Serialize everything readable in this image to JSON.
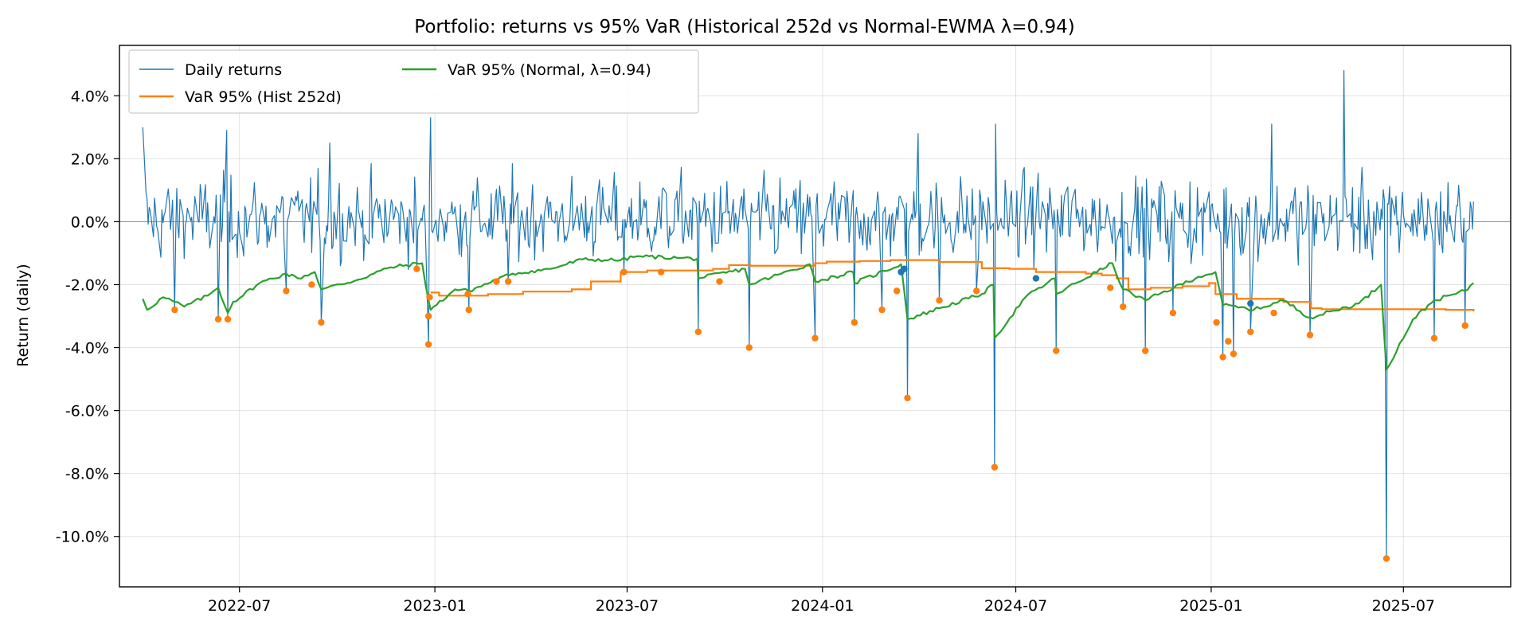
{
  "chart_data": {
    "type": "line",
    "title": "Portfolio: returns vs 95% VaR (Historical 252d vs Normal-EWMA λ=0.94)",
    "xlabel": "",
    "ylabel": "Return (daily)",
    "x_range": [
      "2022-03-10",
      "2025-10-10"
    ],
    "y_range": [
      -0.116,
      0.056
    ],
    "y_ticks": [
      0.04,
      0.02,
      0.0,
      -0.02,
      -0.04,
      -0.06,
      -0.08,
      -0.1
    ],
    "y_tick_labels": [
      "4.0%",
      "2.0%",
      "0.0%",
      "-2.0%",
      "-4.0%",
      "-6.0%",
      "-8.0%",
      "-10.0%"
    ],
    "x_ticks": [
      "2022-07-01",
      "2023-01-01",
      "2023-07-01",
      "2024-01-01",
      "2024-07-01",
      "2025-01-01",
      "2025-07-01"
    ],
    "x_tick_labels": [
      "2022-07",
      "2023-01",
      "2023-07",
      "2024-01",
      "2024-07",
      "2025-01",
      "2025-07"
    ],
    "grid": true,
    "zero_line": true,
    "legend_position": "top-left",
    "legend": [
      {
        "label": "Daily returns",
        "color": "#1f77b4"
      },
      {
        "label": "VaR 95% (Hist 252d)",
        "color": "#ff7f0e"
      },
      {
        "label": "VaR 95% (Normal, λ=0.94)",
        "color": "#2ca02c"
      }
    ],
    "series": [
      {
        "name": "Daily returns",
        "color": "#1f77b4",
        "date_range": [
          "2022-04-01",
          "2025-09-05"
        ],
        "generator_seed": 12345,
        "volatility": 0.0115,
        "notable_points": [
          {
            "date": "2022-04-01",
            "y": 0.03
          },
          {
            "date": "2022-05-01",
            "y": -0.028
          },
          {
            "date": "2022-06-11",
            "y": -0.031
          },
          {
            "date": "2022-06-19",
            "y": 0.029
          },
          {
            "date": "2022-06-20",
            "y": -0.031
          },
          {
            "date": "2022-08-14",
            "y": -0.022
          },
          {
            "date": "2022-09-16",
            "y": -0.032
          },
          {
            "date": "2022-09-24",
            "y": 0.025
          },
          {
            "date": "2022-12-15",
            "y": -0.015
          },
          {
            "date": "2022-12-26",
            "y": -0.039
          },
          {
            "date": "2022-12-28",
            "y": 0.033
          },
          {
            "date": "2023-02-02",
            "y": -0.028
          },
          {
            "date": "2023-03-11",
            "y": -0.019
          },
          {
            "date": "2023-06-28",
            "y": -0.016
          },
          {
            "date": "2023-09-06",
            "y": -0.035
          },
          {
            "date": "2023-10-24",
            "y": -0.04
          },
          {
            "date": "2023-12-25",
            "y": -0.037
          },
          {
            "date": "2024-01-31",
            "y": -0.032
          },
          {
            "date": "2024-02-26",
            "y": -0.028
          },
          {
            "date": "2024-03-21",
            "y": -0.056
          },
          {
            "date": "2024-03-31",
            "y": 0.028
          },
          {
            "date": "2024-04-20",
            "y": -0.025
          },
          {
            "date": "2024-05-25",
            "y": -0.022
          },
          {
            "date": "2024-06-11",
            "y": -0.078
          },
          {
            "date": "2024-06-12",
            "y": 0.031
          },
          {
            "date": "2024-08-08",
            "y": -0.041
          },
          {
            "date": "2024-10-10",
            "y": -0.027
          },
          {
            "date": "2024-10-31",
            "y": -0.041
          },
          {
            "date": "2024-11-26",
            "y": -0.029
          },
          {
            "date": "2025-01-12",
            "y": -0.043
          },
          {
            "date": "2025-01-22",
            "y": -0.042
          },
          {
            "date": "2025-02-07",
            "y": -0.035
          },
          {
            "date": "2025-02-27",
            "y": 0.031
          },
          {
            "date": "2025-04-04",
            "y": -0.036
          },
          {
            "date": "2025-05-06",
            "y": 0.048
          },
          {
            "date": "2025-06-15",
            "y": -0.107
          },
          {
            "date": "2025-07-30",
            "y": -0.037
          },
          {
            "date": "2025-08-28",
            "y": -0.033
          }
        ]
      },
      {
        "name": "VaR 95% (Hist 252d)",
        "color": "#ff7f0e",
        "step": true,
        "points": [
          [
            "2022-12-28",
            -0.0225
          ],
          [
            "2023-01-05",
            -0.0235
          ],
          [
            "2023-02-20",
            -0.023
          ],
          [
            "2023-03-25",
            -0.0222
          ],
          [
            "2023-05-10",
            -0.0215
          ],
          [
            "2023-05-28",
            -0.019
          ],
          [
            "2023-06-25",
            -0.016
          ],
          [
            "2023-07-20",
            -0.0155
          ],
          [
            "2023-09-20",
            -0.015
          ],
          [
            "2023-10-05",
            -0.0138
          ],
          [
            "2023-10-25",
            -0.014
          ],
          [
            "2023-12-25",
            -0.0132
          ],
          [
            "2024-01-05",
            -0.0127
          ],
          [
            "2024-02-05",
            -0.0125
          ],
          [
            "2024-03-05",
            -0.0122
          ],
          [
            "2024-04-20",
            -0.0128
          ],
          [
            "2024-05-30",
            -0.0148
          ],
          [
            "2024-06-25",
            -0.015
          ],
          [
            "2024-07-20",
            -0.016
          ],
          [
            "2024-09-05",
            -0.0165
          ],
          [
            "2024-09-20",
            -0.017
          ],
          [
            "2024-10-04",
            -0.018
          ],
          [
            "2024-10-15",
            -0.0215
          ],
          [
            "2024-11-05",
            -0.021
          ],
          [
            "2024-12-05",
            -0.0205
          ],
          [
            "2024-12-30",
            -0.0195
          ],
          [
            "2025-01-05",
            -0.023
          ],
          [
            "2025-01-25",
            -0.0245
          ],
          [
            "2025-03-10",
            -0.0255
          ],
          [
            "2025-04-05",
            -0.0275
          ],
          [
            "2025-04-15",
            -0.0278
          ],
          [
            "2025-08-10",
            -0.028
          ],
          [
            "2025-09-05",
            -0.0285
          ]
        ]
      },
      {
        "name": "VaR 95% (Normal, λ=0.94)",
        "color": "#2ca02c",
        "points": [
          [
            "2022-04-01",
            -0.0245
          ],
          [
            "2022-04-05",
            -0.028
          ],
          [
            "2022-04-20",
            -0.024
          ],
          [
            "2022-05-01",
            -0.0255
          ],
          [
            "2022-05-10",
            -0.027
          ],
          [
            "2022-06-01",
            -0.0235
          ],
          [
            "2022-06-11",
            -0.021
          ],
          [
            "2022-06-20",
            -0.029
          ],
          [
            "2022-06-25",
            -0.0255
          ],
          [
            "2022-07-20",
            -0.0195
          ],
          [
            "2022-08-14",
            -0.0165
          ],
          [
            "2022-08-25",
            -0.018
          ],
          [
            "2022-09-10",
            -0.016
          ],
          [
            "2022-09-16",
            -0.0215
          ],
          [
            "2022-10-20",
            -0.0185
          ],
          [
            "2022-11-20",
            -0.0145
          ],
          [
            "2022-12-20",
            -0.0132
          ],
          [
            "2022-12-26",
            -0.025
          ],
          [
            "2022-12-28",
            -0.028
          ],
          [
            "2023-01-20",
            -0.0215
          ],
          [
            "2023-02-02",
            -0.022
          ],
          [
            "2023-03-15",
            -0.0165
          ],
          [
            "2023-04-20",
            -0.015
          ],
          [
            "2023-05-20",
            -0.012
          ],
          [
            "2023-06-25",
            -0.0122
          ],
          [
            "2023-07-10",
            -0.011
          ],
          [
            "2023-08-20",
            -0.0115
          ],
          [
            "2023-09-05",
            -0.0118
          ],
          [
            "2023-09-06",
            -0.018
          ],
          [
            "2023-10-20",
            -0.015
          ],
          [
            "2023-10-24",
            -0.02
          ],
          [
            "2023-12-20",
            -0.0135
          ],
          [
            "2023-12-25",
            -0.019
          ],
          [
            "2024-01-30",
            -0.016
          ],
          [
            "2024-01-31",
            -0.0195
          ],
          [
            "2024-03-15",
            -0.0135
          ],
          [
            "2024-03-21",
            -0.031
          ],
          [
            "2024-04-20",
            -0.0275
          ],
          [
            "2024-05-30",
            -0.023
          ],
          [
            "2024-06-10",
            -0.02
          ],
          [
            "2024-06-11",
            -0.037
          ],
          [
            "2024-07-10",
            -0.024
          ],
          [
            "2024-08-07",
            -0.018
          ],
          [
            "2024-08-08",
            -0.023
          ],
          [
            "2024-09-30",
            -0.0132
          ],
          [
            "2024-10-10",
            -0.0215
          ],
          [
            "2024-10-31",
            -0.025
          ],
          [
            "2024-12-20",
            -0.0175
          ],
          [
            "2025-01-05",
            -0.016
          ],
          [
            "2025-01-12",
            -0.0265
          ],
          [
            "2025-02-10",
            -0.028
          ],
          [
            "2025-03-10",
            -0.025
          ],
          [
            "2025-04-04",
            -0.0305
          ],
          [
            "2025-05-20",
            -0.026
          ],
          [
            "2025-06-10",
            -0.02
          ],
          [
            "2025-06-15",
            -0.047
          ],
          [
            "2025-07-10",
            -0.031
          ],
          [
            "2025-07-30",
            -0.025
          ],
          [
            "2025-08-28",
            -0.022
          ],
          [
            "2025-09-05",
            -0.0195
          ]
        ]
      }
    ],
    "exceedances": {
      "hist_color": "#ff7f0e",
      "normal_color": "#1f77b4",
      "hist": [
        [
          "2022-05-01",
          -0.028
        ],
        [
          "2022-06-11",
          -0.031
        ],
        [
          "2022-06-20",
          -0.031
        ],
        [
          "2022-08-14",
          -0.022
        ],
        [
          "2022-09-07",
          -0.02
        ],
        [
          "2022-09-16",
          -0.032
        ],
        [
          "2022-12-15",
          -0.015
        ],
        [
          "2022-12-26",
          -0.039
        ],
        [
          "2022-12-26",
          -0.03
        ],
        [
          "2022-12-27",
          -0.024
        ],
        [
          "2023-02-01",
          -0.023
        ],
        [
          "2023-02-02",
          -0.028
        ],
        [
          "2023-02-28",
          -0.019
        ],
        [
          "2023-03-11",
          -0.019
        ],
        [
          "2023-06-28",
          -0.016
        ],
        [
          "2023-08-02",
          -0.016
        ],
        [
          "2023-09-06",
          -0.035
        ],
        [
          "2023-09-26",
          -0.019
        ],
        [
          "2023-10-24",
          -0.04
        ],
        [
          "2023-12-25",
          -0.037
        ],
        [
          "2024-01-31",
          -0.032
        ],
        [
          "2024-02-26",
          -0.028
        ],
        [
          "2024-03-11",
          -0.022
        ],
        [
          "2024-03-21",
          -0.056
        ],
        [
          "2024-04-20",
          -0.025
        ],
        [
          "2024-05-25",
          -0.022
        ],
        [
          "2024-06-11",
          -0.078
        ],
        [
          "2024-08-08",
          -0.041
        ],
        [
          "2024-09-28",
          -0.021
        ],
        [
          "2024-10-10",
          -0.027
        ],
        [
          "2024-10-31",
          -0.041
        ],
        [
          "2024-11-26",
          -0.029
        ],
        [
          "2025-01-06",
          -0.032
        ],
        [
          "2025-01-12",
          -0.043
        ],
        [
          "2025-01-17",
          -0.038
        ],
        [
          "2025-01-22",
          -0.042
        ],
        [
          "2025-02-07",
          -0.035
        ],
        [
          "2025-03-01",
          -0.029
        ],
        [
          "2025-04-04",
          -0.036
        ],
        [
          "2025-06-15",
          -0.107
        ],
        [
          "2025-07-30",
          -0.037
        ],
        [
          "2025-08-28",
          -0.033
        ]
      ],
      "normal": [
        [
          "2024-03-15",
          -0.016
        ],
        [
          "2024-03-18",
          -0.015
        ],
        [
          "2024-07-20",
          -0.018
        ],
        [
          "2025-02-07",
          -0.026
        ]
      ]
    }
  }
}
